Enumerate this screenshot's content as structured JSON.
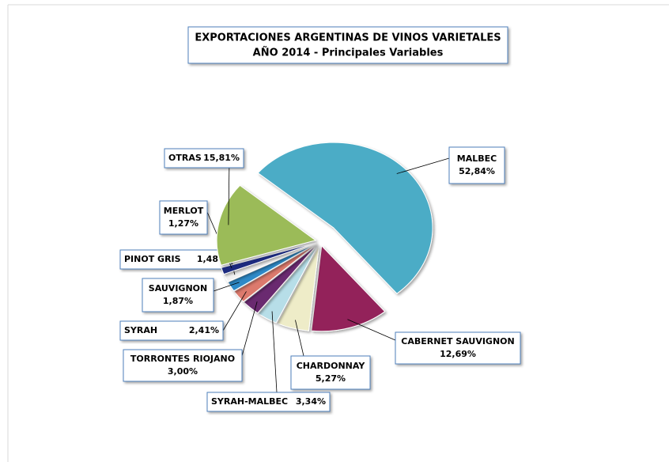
{
  "chart_data": {
    "type": "pie",
    "title": "EXPORTACIONES ARGENTINAS DE VINOS VARIETALES",
    "subtitle": "AÑO 2014 - Principales Variables",
    "categories": [
      "MALBEC",
      "CABERNET SAUVIGNON",
      "CHARDONNAY",
      "SYRAH-MALBEC",
      "TORRONTES RIOJANO",
      "SYRAH",
      "SAUVIGNON",
      "PINOT GRIS",
      "MERLOT",
      "OTRAS"
    ],
    "values": [
      52.84,
      12.69,
      5.27,
      3.34,
      3.0,
      2.41,
      1.87,
      1.48,
      1.27,
      15.81
    ],
    "value_labels": [
      "52,84%",
      "12,69%",
      "5,27%",
      "3,34%",
      "3,00%",
      "2,41%",
      "1,87%",
      "1,48%",
      "1,27%",
      "15,81%"
    ],
    "colors": [
      "#4bacc6",
      "#93245a",
      "#eeecc8",
      "#b7dee8",
      "#6a2c6f",
      "#dc7a6d",
      "#2e8ac8",
      "#f2f2f2",
      "#1f2b7f",
      "#9bbb59"
    ]
  }
}
